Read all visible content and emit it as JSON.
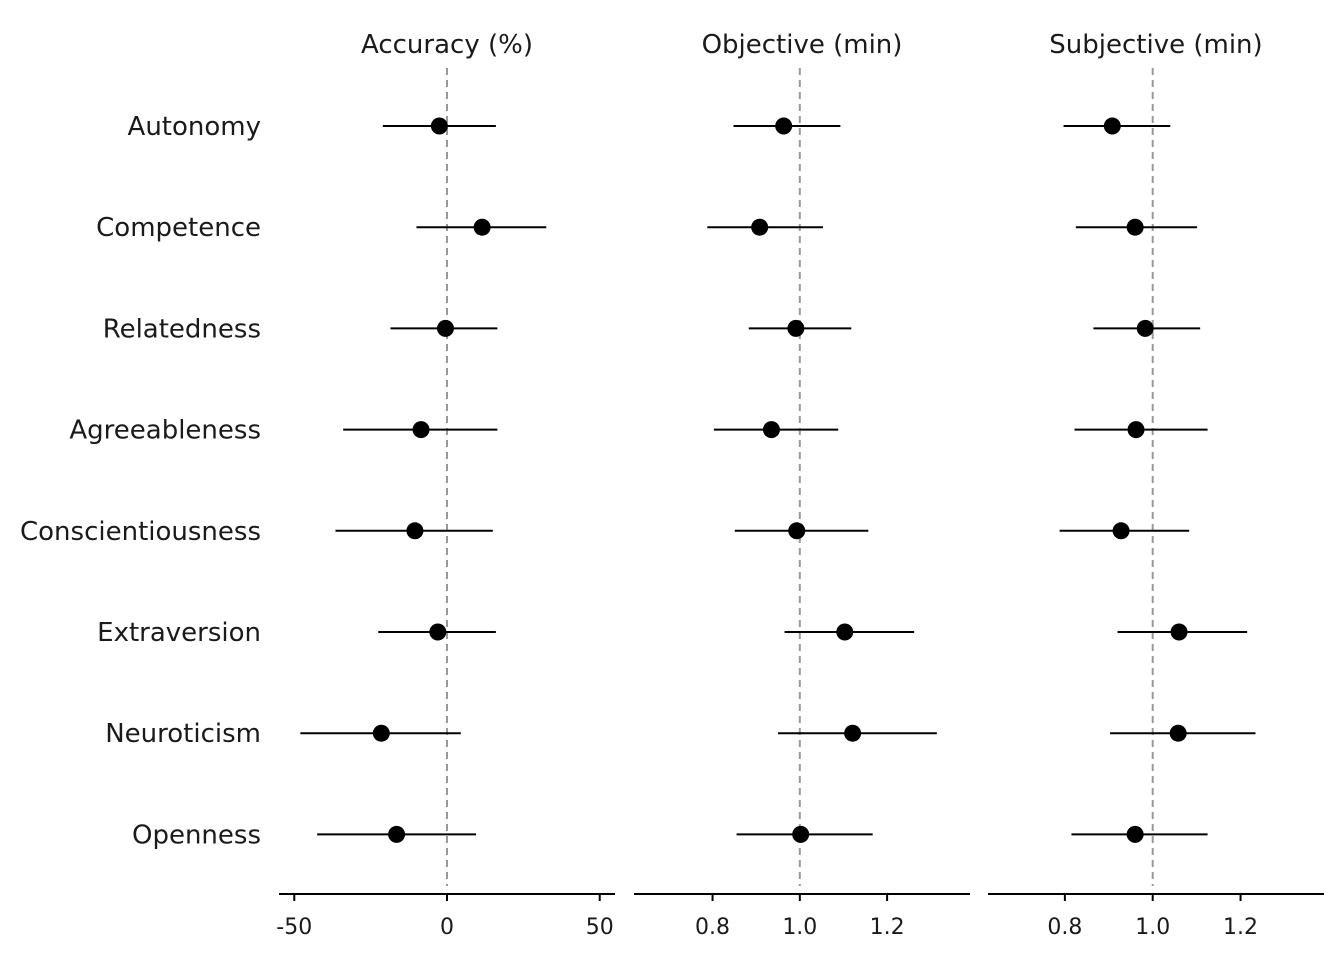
{
  "chart_data": {
    "type": "forest",
    "rows": [
      "Autonomy",
      "Competence",
      "Relatedness",
      "Agreeableness",
      "Conscientiousness",
      "Extraversion",
      "Neuroticism",
      "Openness"
    ],
    "reference_line_style": "dashed",
    "panels": [
      {
        "title": "Accuracy (%)",
        "xlim": [
          -55,
          55
        ],
        "reference": 0,
        "ticks": [
          -50,
          0,
          50
        ],
        "tick_labels": [
          "-50",
          "0",
          "50"
        ],
        "estimates": [
          -2.5,
          11.5,
          -0.5,
          -8.5,
          -10.5,
          -3,
          -21.5,
          -16.5
        ],
        "lower": [
          -21,
          -10,
          -18.5,
          -34,
          -36.5,
          -22.5,
          -48,
          -42.5
        ],
        "upper": [
          16,
          32.5,
          16.5,
          16.5,
          15,
          16,
          4.5,
          9.5
        ]
      },
      {
        "title": "Objective (min)",
        "xlim": [
          0.62,
          1.39
        ],
        "reference": 1.0,
        "ticks": [
          0.8,
          1.0,
          1.2
        ],
        "tick_labels": [
          "0.8",
          "1.0",
          "1.2"
        ],
        "estimates": [
          0.963,
          0.908,
          0.991,
          0.935,
          0.993,
          1.103,
          1.121,
          1.002
        ],
        "lower": [
          0.848,
          0.788,
          0.883,
          0.803,
          0.851,
          0.965,
          0.95,
          0.855
        ],
        "upper": [
          1.093,
          1.053,
          1.118,
          1.088,
          1.157,
          1.262,
          1.314,
          1.167
        ]
      },
      {
        "title": "Subjective (min)",
        "xlim": [
          0.625,
          1.39
        ],
        "reference": 1.0,
        "ticks": [
          0.8,
          1.0,
          1.2
        ],
        "tick_labels": [
          "0.8",
          "1.0",
          "1.2"
        ],
        "estimates": [
          0.908,
          0.96,
          0.983,
          0.962,
          0.928,
          1.06,
          1.058,
          0.96
        ],
        "lower": [
          0.797,
          0.825,
          0.865,
          0.822,
          0.788,
          0.92,
          0.903,
          0.815
        ],
        "upper": [
          1.04,
          1.101,
          1.108,
          1.125,
          1.083,
          1.215,
          1.234,
          1.125
        ]
      }
    ]
  }
}
